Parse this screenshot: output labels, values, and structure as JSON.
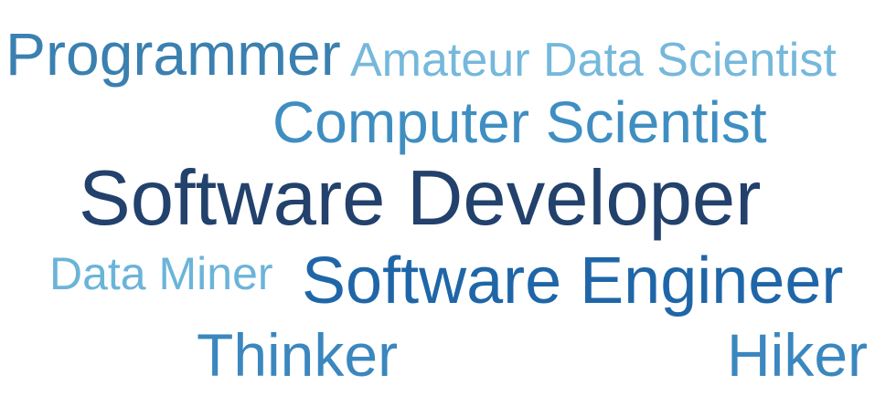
{
  "words": [
    {
      "text": "Programmer",
      "color": "#3a80b0"
    },
    {
      "text": "Amateur Data Scientist",
      "color": "#75b8dc"
    },
    {
      "text": "Computer Scientist",
      "color": "#3f8ec2"
    },
    {
      "text": "Software Developer",
      "color": "#22416c"
    },
    {
      "text": "Data Miner",
      "color": "#6bb4d9"
    },
    {
      "text": "Software Engineer",
      "color": "#1f66a8"
    },
    {
      "text": "Thinker",
      "color": "#3b87bf"
    },
    {
      "text": "Hiker",
      "color": "#3b87bf"
    }
  ]
}
